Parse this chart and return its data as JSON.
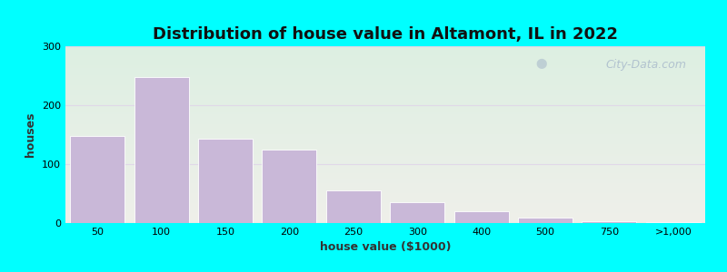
{
  "title": "Distribution of house value in Altamont, IL in 2022",
  "xlabel": "house value ($1000)",
  "ylabel": "houses",
  "bar_values": [
    148,
    248,
    143,
    125,
    55,
    35,
    20,
    10,
    3,
    2
  ],
  "xtick_labels": [
    "50",
    "100",
    "150",
    "200",
    "250",
    "300",
    "400",
    "500",
    "750",
    ">1,000"
  ],
  "bar_color": "#c9b8d8",
  "ylim": [
    0,
    300
  ],
  "yticks": [
    0,
    100,
    200,
    300
  ],
  "background_outer": "#00ffff",
  "bg_top_color": "#ddf0e2",
  "bg_bottom_color": "#efefea",
  "grid_color": "#e0d8e8",
  "title_fontsize": 13,
  "axis_label_fontsize": 9,
  "tick_fontsize": 8,
  "watermark_text": "City-Data.com"
}
